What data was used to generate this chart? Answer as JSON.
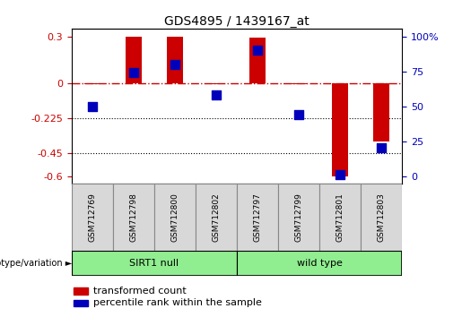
{
  "title": "GDS4895 / 1439167_at",
  "samples": [
    "GSM712769",
    "GSM712798",
    "GSM712800",
    "GSM712802",
    "GSM712797",
    "GSM712799",
    "GSM712801",
    "GSM712803"
  ],
  "transformed_count": [
    -0.01,
    0.3,
    0.3,
    -0.01,
    0.29,
    -0.01,
    -0.6,
    -0.38
  ],
  "percentile_rank": [
    50,
    74,
    80,
    58,
    90,
    44,
    1,
    20
  ],
  "groups": [
    {
      "label": "SIRT1 null",
      "start": 0,
      "end": 4,
      "color": "#90EE90"
    },
    {
      "label": "wild type",
      "start": 4,
      "end": 8,
      "color": "#90EE90"
    }
  ],
  "ylim_left": [
    -0.65,
    0.35
  ],
  "yticks_left": [
    0.3,
    0.0,
    -0.225,
    -0.45,
    -0.6
  ],
  "ytick_labels_left": [
    "0.3",
    "0",
    "-0.225",
    "-0.45",
    "-0.6"
  ],
  "yticks_right": [
    0,
    25,
    50,
    75,
    100
  ],
  "ytick_labels_right": [
    "0",
    "25",
    "50",
    "75",
    "100%"
  ],
  "hlines": [
    -0.225,
    -0.45
  ],
  "bar_color": "#CC0000",
  "dot_color": "#0000BB",
  "bar_width": 0.4,
  "dot_size": 45,
  "legend_red": "transformed count",
  "legend_blue": "percentile rank within the sample",
  "genotype_label": "genotype/variation",
  "plot_bg_color": "#FFFFFF",
  "left_tick_color": "#CC0000",
  "right_tick_color": "#0000BB"
}
